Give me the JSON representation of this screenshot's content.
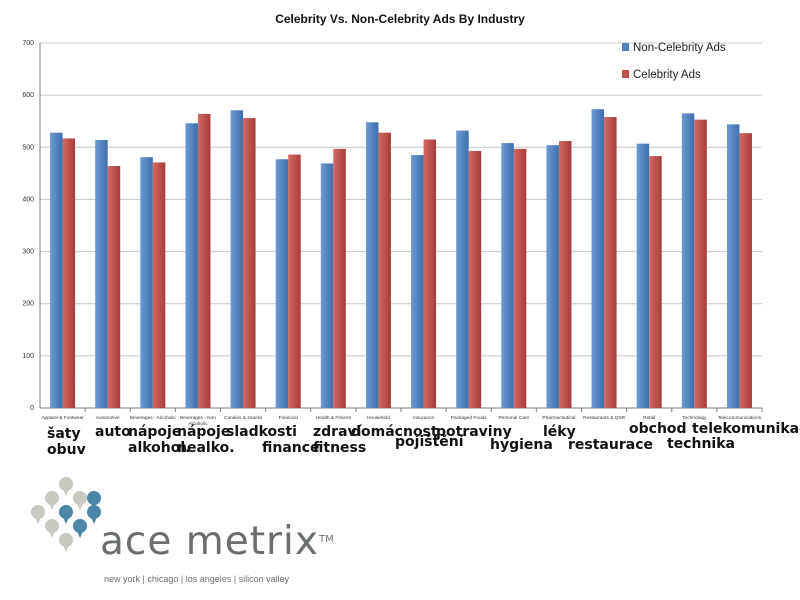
{
  "chart_data": {
    "type": "bar",
    "title": "Celebrity Vs. Non-Celebrity Ads By Industry",
    "categories": [
      "Apparel & Footwear",
      "Automotive",
      "Beverages - Alcoholic",
      "Beverages - Non Alcoholic",
      "Candies & snacks",
      "Financial",
      "Health & Fitness",
      "Household",
      "Insurance",
      "Packaged Foods",
      "Personal Care",
      "Pharmaceutical",
      "Restaurants & QSR",
      "Retail",
      "Technology",
      "Telecommunications"
    ],
    "series": [
      {
        "name": "Non-Celebrity Ads",
        "color": "#4f81bd",
        "values": [
          528,
          514,
          481,
          546,
          571,
          477,
          469,
          548,
          485,
          532,
          508,
          504,
          573,
          507,
          565,
          544
        ]
      },
      {
        "name": "Celebrity Ads",
        "color": "#c0504d",
        "values": [
          517,
          464,
          471,
          564,
          556,
          486,
          497,
          528,
          515,
          493,
          497,
          512,
          558,
          483,
          553,
          527
        ]
      }
    ],
    "ylim": [
      0,
      700
    ],
    "yticks": [
      0,
      100,
      200,
      300,
      400,
      500,
      600,
      700
    ],
    "xlabel": "",
    "ylabel": "",
    "grid": true,
    "legend": "top-right"
  },
  "czech_labels": [
    {
      "lines": [
        "šaty",
        "obuv"
      ]
    },
    {
      "lines": [
        "auto"
      ]
    },
    {
      "lines": [
        "nápoje",
        "alkohol."
      ]
    },
    {
      "lines": [
        "nápoje",
        "nealko."
      ]
    },
    {
      "lines": [
        "sladkosti"
      ]
    },
    {
      "lines": [
        "finance"
      ]
    },
    {
      "lines": [
        "zdraví",
        "fitness"
      ]
    },
    {
      "lines": [
        "domácnost"
      ]
    },
    {
      "lines": [
        "pojištění"
      ]
    },
    {
      "lines": [
        "potraviny"
      ]
    },
    {
      "lines": [
        "hygiena"
      ]
    },
    {
      "lines": [
        "léky"
      ]
    },
    {
      "lines": [
        "restaurace"
      ]
    },
    {
      "lines": [
        "obchod"
      ]
    },
    {
      "lines": [
        "technika"
      ]
    },
    {
      "lines": [
        "telekomunikace"
      ]
    }
  ],
  "logo": {
    "name": "ace metrix",
    "tm": "TM",
    "tagline": "new york | chicago | los angeles | silicon valley",
    "icon": "dot-cluster-logo-icon",
    "dot_colors": {
      "gray": "#c9c9c2",
      "blue": "#4a86a8"
    }
  }
}
